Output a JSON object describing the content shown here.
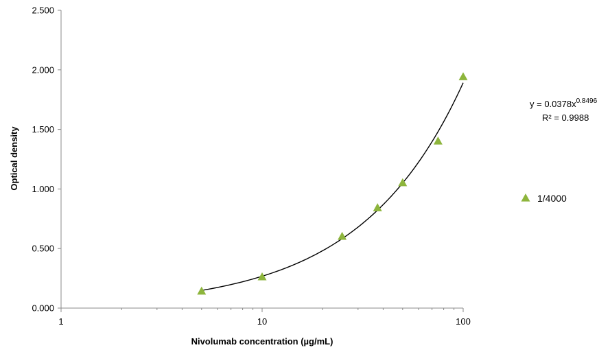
{
  "chart_data": {
    "type": "scatter",
    "xlabel": "Nivolumab concentration (µg/mL)",
    "ylabel": "Optical density",
    "x_scale": "log",
    "xlim": [
      1,
      100
    ],
    "ylim": [
      0,
      2.5
    ],
    "x_ticks": [
      1,
      10,
      100
    ],
    "x_tick_labels": [
      "1",
      "10",
      "100"
    ],
    "y_ticks": [
      0,
      0.5,
      1.0,
      1.5,
      2.0,
      2.5
    ],
    "y_tick_labels": [
      "0.000",
      "0.500",
      "1.000",
      "1.500",
      "2.000",
      "2.500"
    ],
    "grid": false,
    "legend_position": "right",
    "series": [
      {
        "name": "1/4000",
        "marker": "triangle",
        "color": "#8db53c",
        "x": [
          5,
          10,
          25,
          37.5,
          50,
          75,
          100
        ],
        "y": [
          0.14,
          0.26,
          0.6,
          0.84,
          1.05,
          1.4,
          1.94
        ]
      }
    ],
    "trendline": {
      "type": "power",
      "coefficient": 0.0378,
      "exponent": 0.8496,
      "x_range": [
        5,
        100
      ],
      "color": "#000000",
      "equation_text": "y = 0.0378x",
      "equation_exponent": "0.8496",
      "r_squared_text": "R² = 0.9988"
    }
  }
}
